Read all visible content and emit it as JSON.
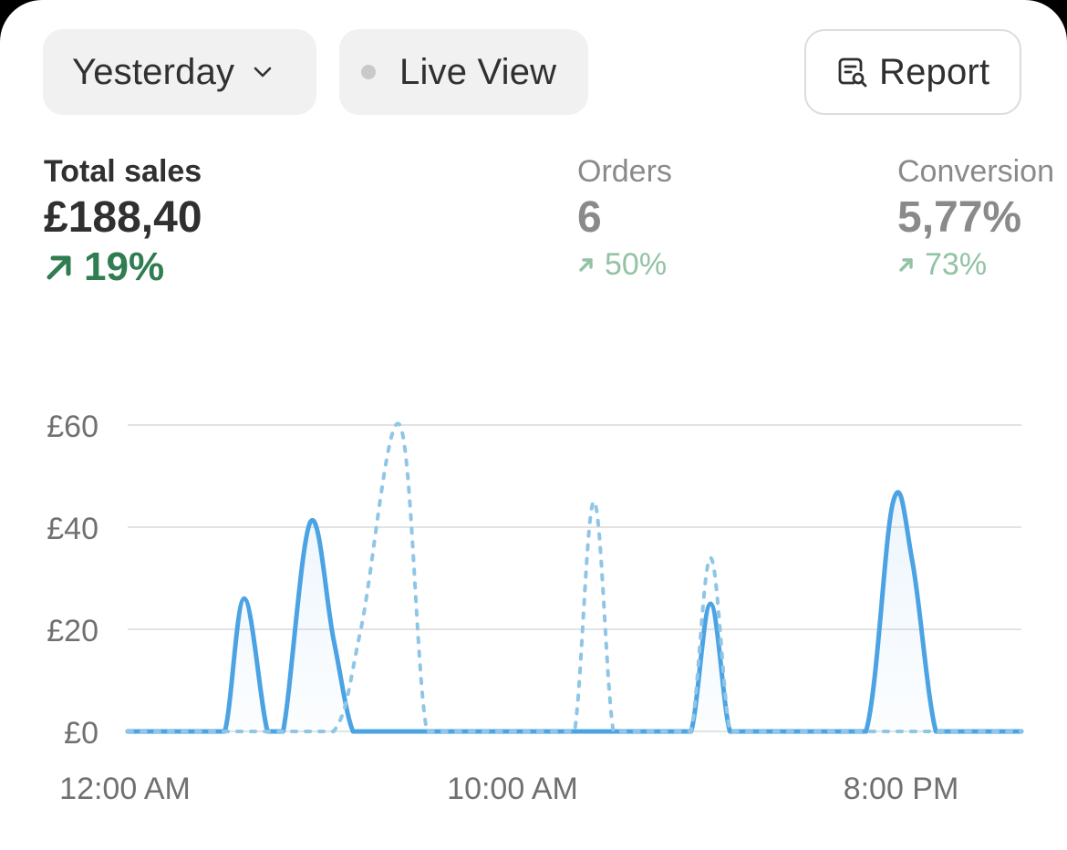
{
  "toolbar": {
    "date_range": "Yesterday",
    "live_view": "Live View",
    "report": "Report"
  },
  "metrics": [
    {
      "label": "Total sales",
      "value": "£188,40",
      "change": "19%",
      "direction": "up",
      "active": true
    },
    {
      "label": "Orders",
      "value": "6",
      "change": "50%",
      "direction": "up",
      "active": false
    },
    {
      "label": "Conversion",
      "value": "5,77%",
      "change": "73%",
      "direction": "up",
      "active": false
    }
  ],
  "colors": {
    "current_line": "#4ba3e3",
    "comparison_line": "#8fc6e6",
    "positive": "#2f7d50",
    "positive_muted": "#93c2a4",
    "grid": "#e3e3e3",
    "axis_text": "#707070"
  },
  "chart_data": {
    "type": "area",
    "ylim": [
      0,
      60
    ],
    "y_ticks": [
      "£60",
      "£40",
      "£20",
      "£0"
    ],
    "y_tick_values": [
      60,
      40,
      20,
      0
    ],
    "x_tick_labels": [
      "12:00 AM",
      "10:00 AM",
      "8:00 PM"
    ],
    "x_tick_hours": [
      0,
      10,
      20
    ],
    "xlim": [
      0,
      23
    ],
    "series": [
      {
        "style": "solid-filled",
        "x": [
          0,
          2,
          2.5,
          3,
          3.6,
          4,
          4.7,
          5.3,
          5.8,
          6.3,
          7,
          10,
          12,
          14,
          14.5,
          15,
          15.5,
          16,
          18,
          19,
          19.7,
          20.2,
          20.8,
          21.4,
          22,
          23
        ],
        "y": [
          0,
          0,
          0,
          26,
          0,
          0,
          41,
          18,
          0,
          0,
          0,
          0,
          0,
          0,
          0,
          25,
          0,
          0,
          0,
          0,
          45,
          33,
          0,
          0,
          0,
          0
        ]
      },
      {
        "style": "dotted",
        "x": [
          0,
          4,
          5.3,
          6,
          7,
          7.7,
          8.5,
          9,
          11,
          11.5,
          12,
          12.5,
          13,
          14,
          14.5,
          15,
          15.5,
          16,
          18,
          23
        ],
        "y": [
          0,
          0,
          0,
          20,
          60,
          0,
          0,
          0,
          0,
          0,
          45,
          0,
          0,
          0,
          0,
          34,
          0,
          0,
          0,
          0
        ]
      }
    ]
  }
}
